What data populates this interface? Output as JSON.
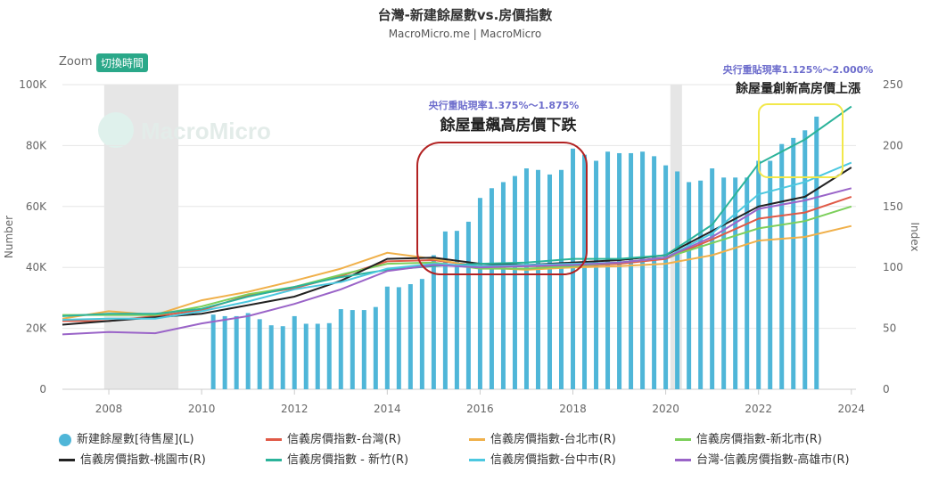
{
  "header": {
    "title": "台灣-新建餘屋數vs.房價指數",
    "subtitle": "MacroMicro.me | MacroMicro",
    "zoom_label": "Zoom",
    "zoom_button": "切換時間",
    "watermark": "MacroMicro"
  },
  "annotations": {
    "rate1": "央行重貼現率1.375%～1.875%",
    "text1": "餘屋量飆高房價下跌",
    "rate2": "央行重貼現率1.125%～2.000%",
    "text2": "餘屋量創新高房價上漲"
  },
  "colors": {
    "bar": "#4fb6d8",
    "taiwan": "#e05a47",
    "taipei": "#f0b04a",
    "newtaipei": "#7ccf5b",
    "taoyuan": "#222222",
    "hsinchu": "#2bb39a",
    "taichung": "#4cc8e0",
    "kaohsiung": "#9a64c8",
    "red_box": "#b22222",
    "yellow_box": "#f2e84a",
    "recession": "#e6e6e6"
  },
  "chart_data": {
    "type": "bar",
    "title": "台灣-新建餘屋數vs.房價指數",
    "ylabel_left": "Number",
    "ylabel_right": "Index",
    "xlim": [
      2007.0,
      2024.1
    ],
    "ylim_left": [
      0,
      100000
    ],
    "ylim_right": [
      0,
      250
    ],
    "x_ticks": [
      "2008",
      "2010",
      "2012",
      "2014",
      "2016",
      "2018",
      "2020",
      "2022",
      "2024"
    ],
    "y_left_ticks": [
      "0",
      "20K",
      "40K",
      "60K",
      "80K",
      "100K"
    ],
    "y_right_ticks": [
      "0",
      "50",
      "100",
      "150",
      "200",
      "250"
    ],
    "grid": true,
    "legend_position": "bottom",
    "shaded_periods": [
      [
        2007.9,
        2009.5
      ],
      [
        2020.1,
        2020.35
      ]
    ],
    "bars": {
      "name": "新建餘屋數[待售屋](L)",
      "x": [
        2010.25,
        2010.5,
        2010.75,
        2011.0,
        2011.25,
        2011.5,
        2011.75,
        2012.0,
        2012.25,
        2012.5,
        2012.75,
        2013.0,
        2013.25,
        2013.5,
        2013.75,
        2014.0,
        2014.25,
        2014.5,
        2014.75,
        2015.0,
        2015.25,
        2015.5,
        2015.75,
        2016.0,
        2016.25,
        2016.5,
        2016.75,
        2017.0,
        2017.25,
        2017.5,
        2017.75,
        2018.0,
        2018.25,
        2018.5,
        2018.75,
        2019.0,
        2019.25,
        2019.5,
        2019.75,
        2020.0,
        2020.25,
        2020.5,
        2020.75,
        2021.0,
        2021.25,
        2021.5,
        2021.75,
        2022.0,
        2022.25,
        2022.5,
        2022.75,
        2023.0,
        2023.25
      ],
      "values": [
        24500,
        24000,
        24000,
        25000,
        23000,
        21000,
        20700,
        24000,
        21500,
        21500,
        21700,
        26300,
        26000,
        26000,
        27000,
        33700,
        33500,
        34500,
        36200,
        44000,
        51800,
        52000,
        55000,
        62800,
        66000,
        68000,
        70000,
        72500,
        72000,
        70500,
        72000,
        79000,
        77000,
        75000,
        78000,
        77500,
        77500,
        78000,
        76500,
        73500,
        71500,
        68000,
        68500,
        72500,
        69500,
        69500,
        69500,
        75000,
        75000,
        80500,
        82500,
        85000,
        89500
      ]
    },
    "series": [
      {
        "name": "信義房價指數-台灣(R)",
        "x": [
          2007,
          2008,
          2009,
          2010,
          2011,
          2012,
          2013,
          2014,
          2015,
          2016,
          2017,
          2018,
          2019,
          2020,
          2021,
          2022,
          2023,
          2024
        ],
        "values": [
          56,
          56,
          60,
          65,
          77,
          83,
          93,
          105,
          106,
          101,
          101,
          101,
          103,
          107,
          123,
          140,
          145,
          158
        ]
      },
      {
        "name": "信義房價指數-台北市(R)",
        "x": [
          2007,
          2008,
          2009,
          2010,
          2011,
          2012,
          2013,
          2014,
          2015,
          2016,
          2017,
          2018,
          2019,
          2020,
          2021,
          2022,
          2023,
          2024
        ],
        "values": [
          58,
          64,
          61,
          73,
          80,
          89,
          99,
          112,
          107,
          100,
          98,
          100,
          101,
          103,
          110,
          122,
          125,
          134
        ]
      },
      {
        "name": "信義房價指數-新北市(R)",
        "x": [
          2007,
          2008,
          2009,
          2010,
          2011,
          2012,
          2013,
          2014,
          2015,
          2016,
          2017,
          2018,
          2019,
          2020,
          2021,
          2022,
          2023,
          2024
        ],
        "values": [
          61,
          61,
          61,
          68,
          78,
          84,
          94,
          103,
          104,
          99,
          99,
          101,
          104,
          108,
          120,
          132,
          138,
          150
        ]
      },
      {
        "name": "信義房價指數-桃園市(R)",
        "x": [
          2007,
          2008,
          2009,
          2010,
          2011,
          2012,
          2013,
          2014,
          2015,
          2016,
          2017,
          2018,
          2019,
          2020,
          2021,
          2022,
          2023,
          2024
        ],
        "values": [
          53,
          56,
          59,
          62,
          69,
          76,
          89,
          107,
          108,
          103,
          102,
          104,
          106,
          110,
          130,
          150,
          158,
          182
        ]
      },
      {
        "name": "信義房價指數 - 新竹(R)",
        "x": [
          2007,
          2008,
          2009,
          2010,
          2011,
          2012,
          2013,
          2014,
          2015,
          2016,
          2017,
          2018,
          2019,
          2020,
          2021,
          2022,
          2023,
          2024
        ],
        "values": [
          60,
          62,
          62,
          66,
          76,
          84,
          92,
          98,
          101,
          103,
          104,
          107,
          107,
          110,
          135,
          185,
          205,
          232
        ]
      },
      {
        "name": "信義房價指數-台中市(R)",
        "x": [
          2007,
          2008,
          2009,
          2010,
          2011,
          2012,
          2013,
          2014,
          2015,
          2016,
          2017,
          2018,
          2019,
          2020,
          2021,
          2022,
          2023,
          2024
        ],
        "values": [
          57,
          58,
          58,
          64,
          72,
          82,
          88,
          99,
          103,
          101,
          102,
          103,
          104,
          108,
          128,
          160,
          170,
          186
        ]
      },
      {
        "name": "台灣-信義房價指數-高雄市(R)",
        "x": [
          2007,
          2008,
          2009,
          2010,
          2011,
          2012,
          2013,
          2014,
          2015,
          2016,
          2017,
          2018,
          2019,
          2020,
          2021,
          2022,
          2023,
          2024
        ],
        "values": [
          45,
          47,
          46,
          54,
          60,
          70,
          82,
          97,
          102,
          100,
          101,
          102,
          104,
          108,
          125,
          148,
          155,
          165
        ]
      }
    ]
  }
}
